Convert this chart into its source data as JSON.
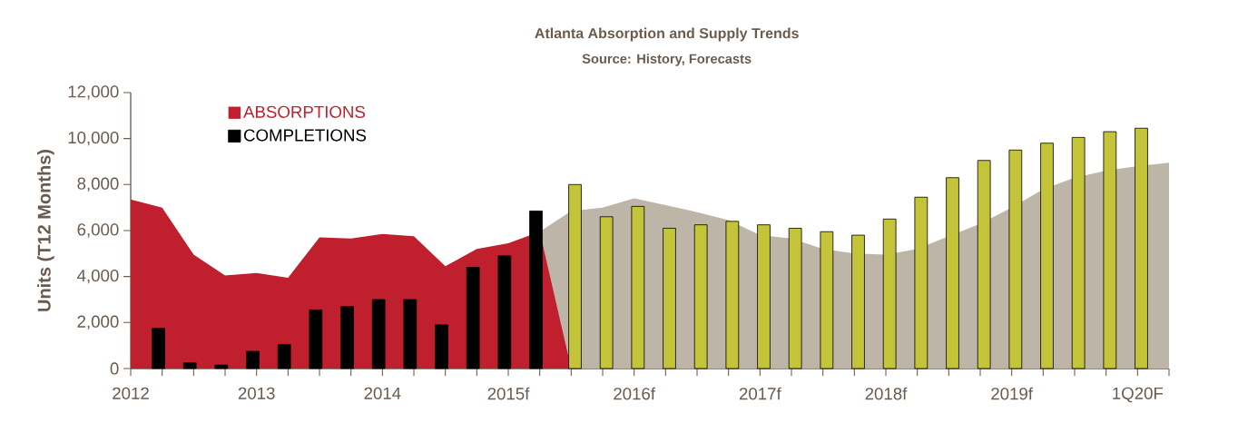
{
  "chart_data": {
    "type": "area",
    "title": "Atlanta Absorption and Supply Trends",
    "subtitle": "Source: History, Forecasts",
    "ylabel": "Units (T12 Months)",
    "xlim": [
      2012,
      2020.25
    ],
    "xticks": [
      {
        "value": 2012,
        "label": "2012"
      },
      {
        "value": 2012.25,
        "label": null
      },
      {
        "value": 2012.5,
        "label": null
      },
      {
        "value": 2012.75,
        "label": null
      },
      {
        "value": 2013,
        "label": "2013"
      },
      {
        "value": 2013.25,
        "label": null
      },
      {
        "value": 2013.5,
        "label": null
      },
      {
        "value": 2013.75,
        "label": null
      },
      {
        "value": 2014,
        "label": "2014"
      },
      {
        "value": 2014.25,
        "label": null
      },
      {
        "value": 2014.5,
        "label": null
      },
      {
        "value": 2014.75,
        "label": null
      },
      {
        "value": 2015,
        "label": "2015f"
      },
      {
        "value": 2015.25,
        "label": null
      },
      {
        "value": 2015.5,
        "label": null
      },
      {
        "value": 2015.75,
        "label": null
      },
      {
        "value": 2016,
        "label": "2016f"
      },
      {
        "value": 2016.25,
        "label": null
      },
      {
        "value": 2016.5,
        "label": null
      },
      {
        "value": 2016.75,
        "label": null
      },
      {
        "value": 2017,
        "label": "2017f"
      },
      {
        "value": 2017.25,
        "label": null
      },
      {
        "value": 2017.5,
        "label": null
      },
      {
        "value": 2017.75,
        "label": null
      },
      {
        "value": 2018,
        "label": "2018f"
      },
      {
        "value": 2018.25,
        "label": null
      },
      {
        "value": 2018.5,
        "label": null
      },
      {
        "value": 2018.75,
        "label": null
      },
      {
        "value": 2019,
        "label": "2019f"
      },
      {
        "value": 2019.25,
        "label": null
      },
      {
        "value": 2019.5,
        "label": null
      },
      {
        "value": 2019.75,
        "label": null
      },
      {
        "value": 2020,
        "label": "1Q20F"
      },
      {
        "value": 2020.25,
        "label": null
      }
    ],
    "ylim": [
      0,
      12000
    ],
    "yticks": [
      {
        "value": 0,
        "label": "0"
      },
      {
        "value": 2000,
        "label": "2,000"
      },
      {
        "value": 4000,
        "label": "4,000"
      },
      {
        "value": 6000,
        "label": "6,000"
      },
      {
        "value": 8000,
        "label": "8,000"
      },
      {
        "value": 10000,
        "label": "10,000"
      },
      {
        "value": 12000,
        "label": "12,000"
      }
    ],
    "legend": "top left",
    "grid": false,
    "series": [
      {
        "color": "#bcb5a8",
        "x": [
          2015.25,
          2015.5,
          2015.75,
          2016,
          2016.25,
          2016.5,
          2016.75,
          2017,
          2017.25,
          2017.5,
          2017.75,
          2018,
          2018.25,
          2018.5,
          2018.75,
          2019,
          2019.25,
          2019.5,
          2019.75,
          2020,
          2020.25
        ],
        "values": [
          5950,
          6850,
          7000,
          7400,
          7100,
          6800,
          6450,
          5800,
          5650,
          5200,
          5000,
          4950,
          5200,
          5750,
          6300,
          7000,
          7800,
          8300,
          8600,
          8800,
          8950
        ]
      },
      {
        "name": "ABSORPTIONS",
        "color": "#c0202e",
        "x": [
          2012,
          2012.25,
          2012.5,
          2012.75,
          2013,
          2013.25,
          2013.5,
          2013.75,
          2014,
          2014.25,
          2014.5,
          2014.75,
          2015,
          2015.25,
          2015.5
        ],
        "values": [
          7350,
          7000,
          4950,
          4050,
          4150,
          3950,
          5700,
          5650,
          5850,
          5750,
          4450,
          5200,
          5450,
          5950,
          0
        ]
      },
      {
        "type": "bar",
        "name": "COMPLETIONS",
        "color": "#000000",
        "x": [
          2012.22,
          2012.47,
          2012.72,
          2012.97,
          2013.22,
          2013.47,
          2013.72,
          2013.97,
          2014.22,
          2014.47,
          2014.72,
          2014.97,
          2015.22
        ],
        "values": [
          1750,
          250,
          150,
          750,
          1050,
          2550,
          2700,
          3000,
          3000,
          1900,
          4400,
          4900,
          6850
        ]
      },
      {
        "type": "bar",
        "color": "#c4c43a",
        "x": [
          2015.53,
          2015.78,
          2016.03,
          2016.28,
          2016.53,
          2016.78,
          2017.03,
          2017.28,
          2017.53,
          2017.78,
          2018.03,
          2018.28,
          2018.53,
          2018.78,
          2019.03,
          2019.28,
          2019.53,
          2019.78,
          2020.03
        ],
        "values": [
          8000,
          6600,
          7050,
          6100,
          6250,
          6400,
          6250,
          6100,
          5950,
          5800,
          6500,
          7450,
          8300,
          9050,
          9500,
          9800,
          10050,
          10300,
          10450
        ]
      }
    ]
  }
}
